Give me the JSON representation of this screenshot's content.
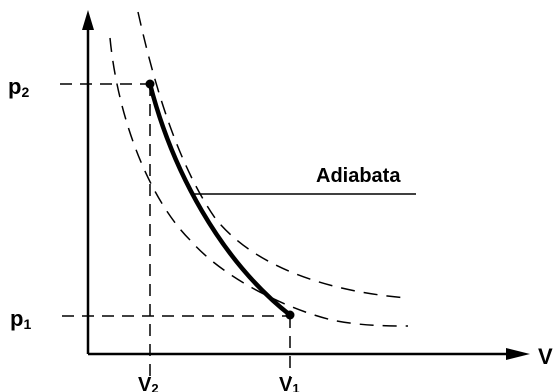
{
  "diagram": {
    "labels": {
      "p2": {
        "main": "p",
        "sub": "2"
      },
      "p1": {
        "main": "p",
        "sub": "1"
      },
      "v2": {
        "main": "V",
        "sub": "2"
      },
      "v1": {
        "main": "V",
        "sub": "1"
      },
      "v_axis": "V",
      "adiabat": "Adiabata"
    },
    "colors": {
      "ink": "#000000",
      "background": "#ffffff"
    }
  }
}
